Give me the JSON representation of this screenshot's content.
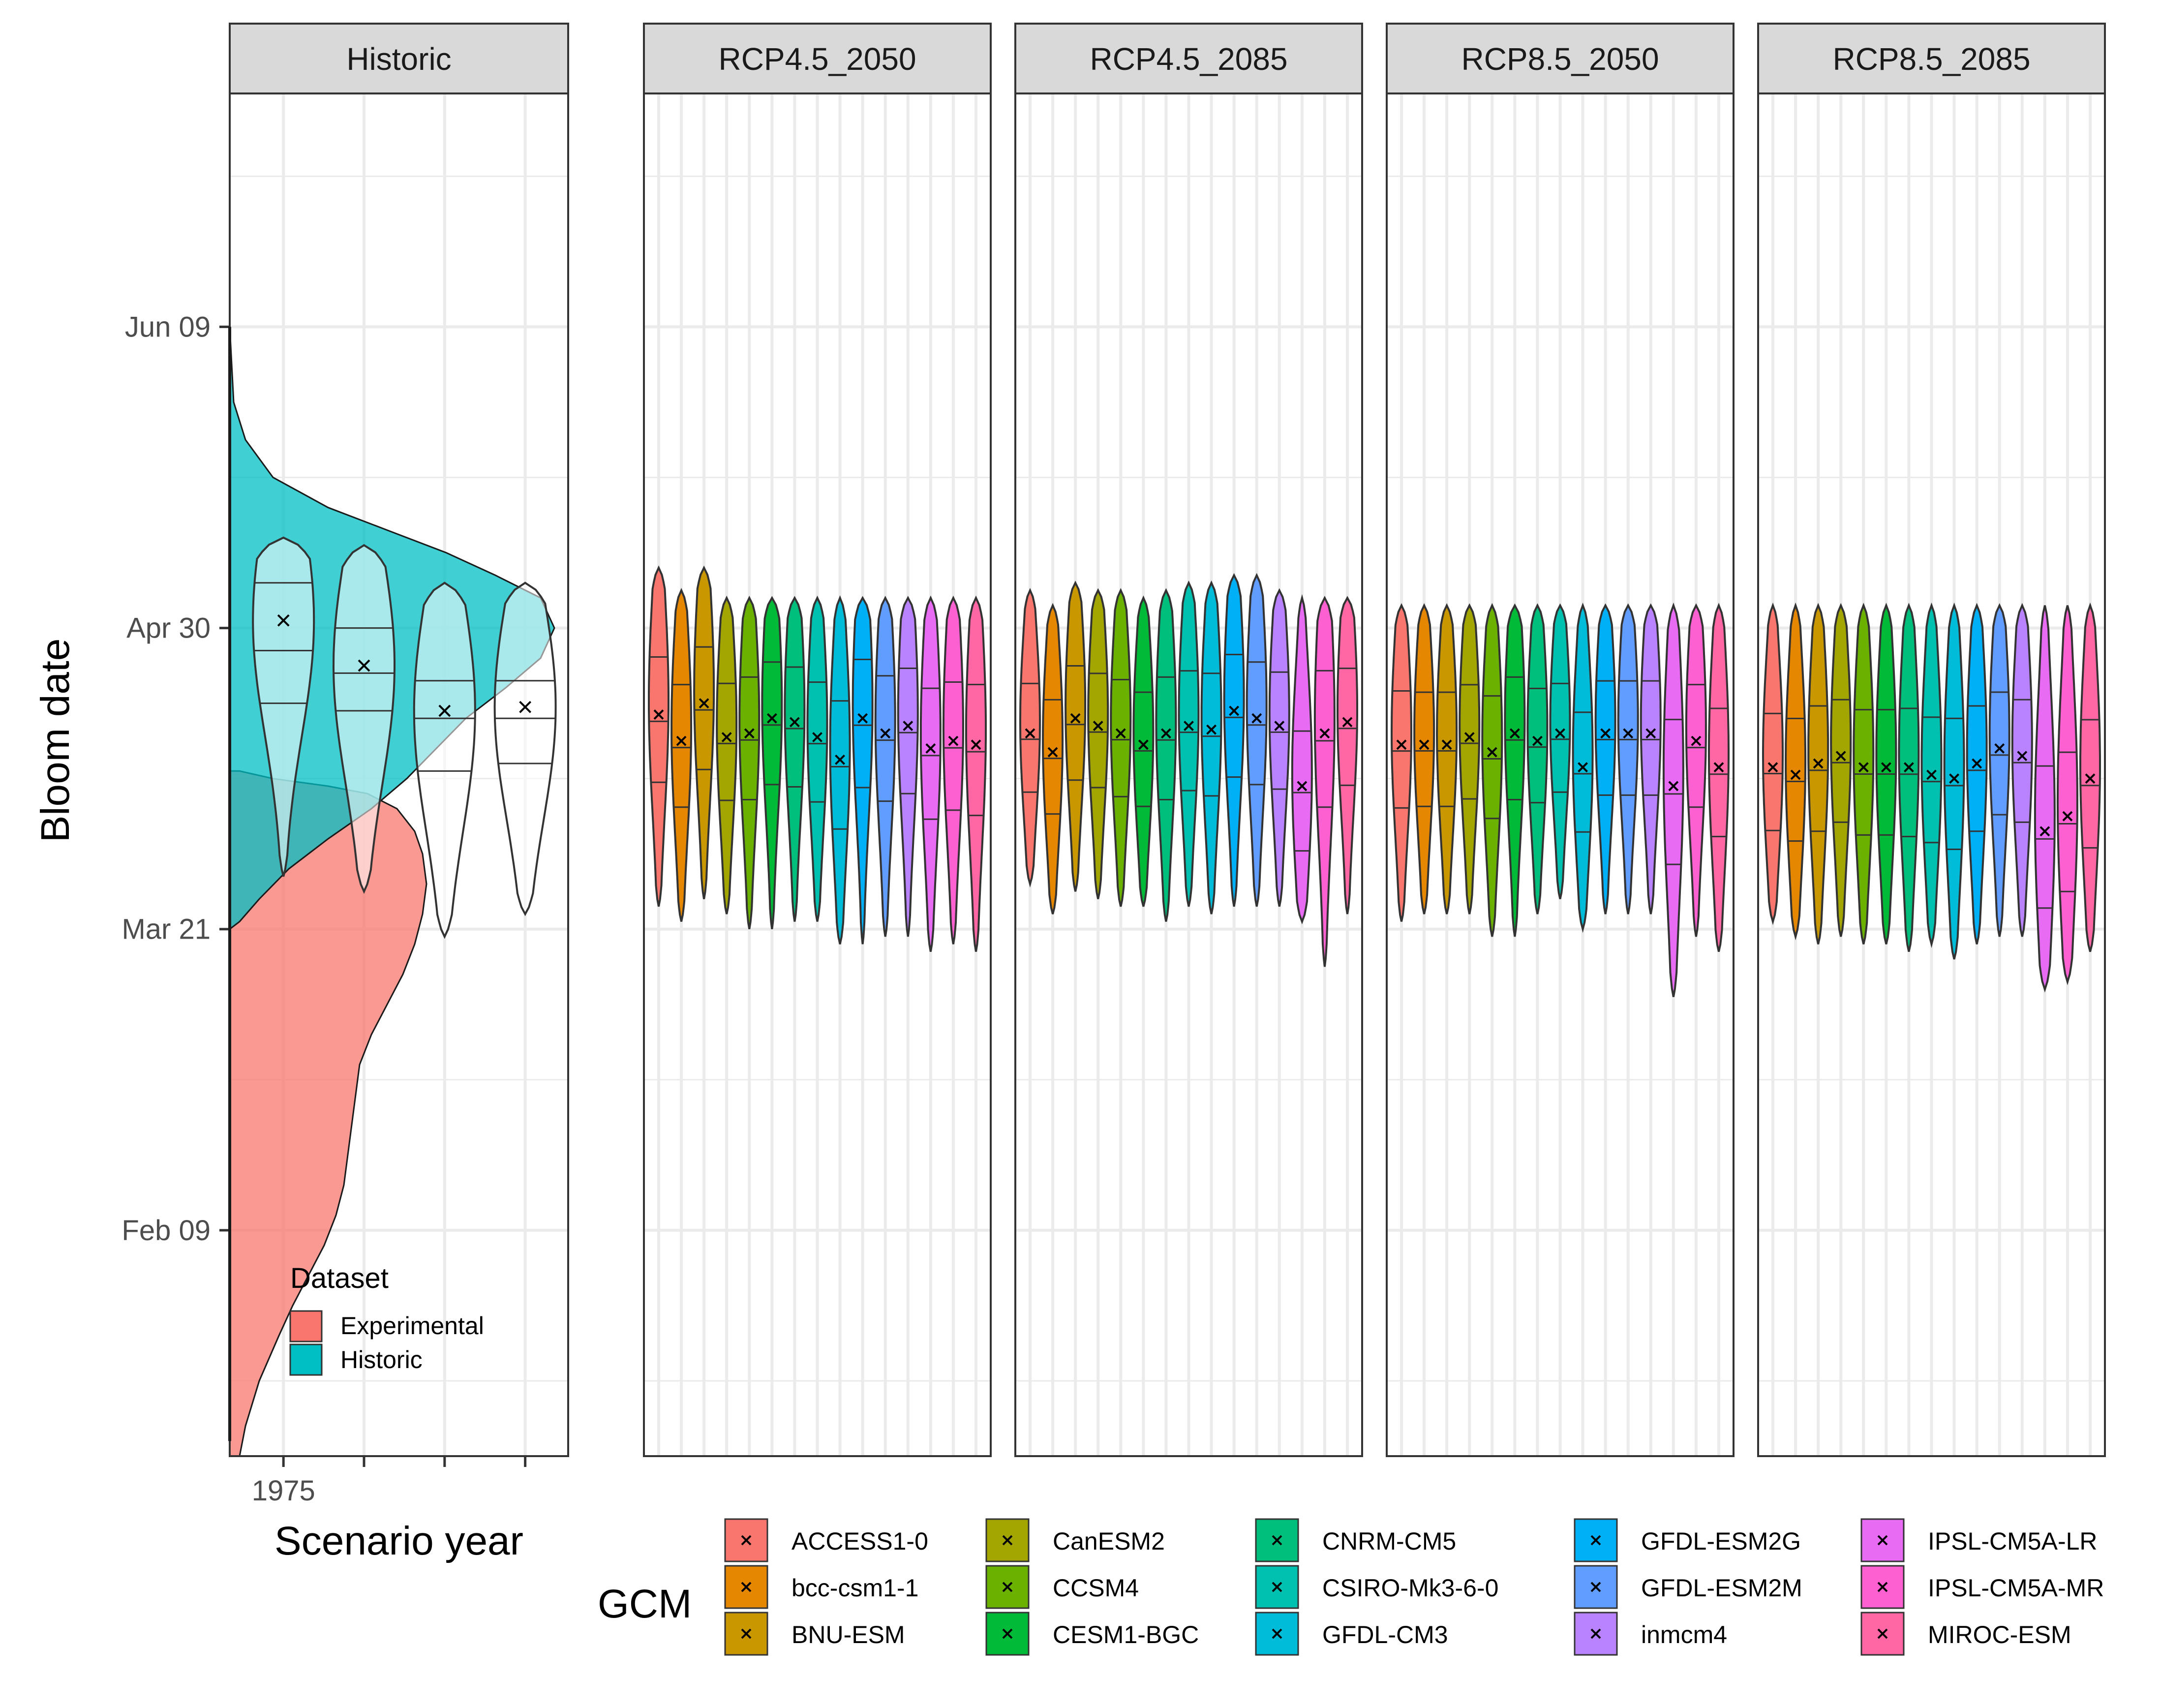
{
  "chart_data": {
    "type": "violin",
    "xlabel": "Scenario year",
    "ylabel": "Bloom date",
    "y_unit": "day of year",
    "ylim_doy": [
      10,
      191
    ],
    "y_ticks": [
      {
        "label": "Feb 09",
        "doy": 40
      },
      {
        "label": "Mar 21",
        "doy": 80
      },
      {
        "label": "Apr 30",
        "doy": 120
      },
      {
        "label": "Jun 09",
        "doy": 160
      }
    ],
    "grid": true,
    "historic_panel": {
      "title": "Historic",
      "x_ticks": [
        {
          "label": "1975",
          "value": 1975
        },
        {
          "label": "",
          "value": 1990
        },
        {
          "label": "",
          "value": 2005
        },
        {
          "label": "",
          "value": 2020
        }
      ],
      "xlim": [
        1965,
        2028
      ],
      "dataset_legend": {
        "title": "Dataset",
        "placement": "inside-bottom-left",
        "entries": [
          {
            "label": "Experimental",
            "color": "#F8766D"
          },
          {
            "label": "Historic",
            "color": "#00BFC4"
          }
        ]
      },
      "density_experimental": [
        [
          10,
          0.05
        ],
        [
          14,
          0.08
        ],
        [
          20,
          0.15
        ],
        [
          26,
          0.25
        ],
        [
          30,
          0.32
        ],
        [
          34,
          0.4
        ],
        [
          38,
          0.48
        ],
        [
          42,
          0.54
        ],
        [
          46,
          0.58
        ],
        [
          50,
          0.6
        ],
        [
          54,
          0.62
        ],
        [
          58,
          0.64
        ],
        [
          62,
          0.66
        ],
        [
          66,
          0.72
        ],
        [
          70,
          0.8
        ],
        [
          74,
          0.88
        ],
        [
          78,
          0.94
        ],
        [
          82,
          0.98
        ],
        [
          86,
          1.0
        ],
        [
          90,
          0.98
        ],
        [
          93,
          0.94
        ],
        [
          96,
          0.85
        ],
        [
          98,
          0.7
        ],
        [
          99,
          0.5
        ],
        [
          100,
          0.22
        ],
        [
          101,
          0.05
        ]
      ],
      "density_historic": [
        [
          80,
          0.0
        ],
        [
          81,
          0.05
        ],
        [
          84,
          0.15
        ],
        [
          88,
          0.3
        ],
        [
          92,
          0.5
        ],
        [
          96,
          0.72
        ],
        [
          100,
          0.9
        ],
        [
          104,
          1.05
        ],
        [
          108,
          1.2
        ],
        [
          112,
          1.4
        ],
        [
          116,
          1.58
        ],
        [
          120,
          1.65
        ],
        [
          124,
          1.58
        ],
        [
          127,
          1.35
        ],
        [
          130,
          1.1
        ],
        [
          133,
          0.8
        ],
        [
          136,
          0.5
        ],
        [
          140,
          0.22
        ],
        [
          145,
          0.08
        ],
        [
          150,
          0.02
        ],
        [
          160,
          0.0
        ]
      ],
      "violins": [
        {
          "year": 1975,
          "mean": 121.0,
          "min": 87,
          "max": 132,
          "q1": 110,
          "q2": 117,
          "q3": 126
        },
        {
          "year": 1990,
          "mean": 115.0,
          "min": 85,
          "max": 131,
          "q1": 109,
          "q2": 114,
          "q3": 120
        },
        {
          "year": 2005,
          "mean": 109.0,
          "min": 79,
          "max": 126,
          "q1": 101,
          "q2": 108,
          "q3": 113
        },
        {
          "year": 2020,
          "mean": 109.5,
          "min": 82,
          "max": 126,
          "q1": 102,
          "q2": 108,
          "q3": 113
        }
      ]
    },
    "gcm_legend": {
      "title": "GCM",
      "entries": [
        {
          "name": "ACCESS1-0",
          "color": "#F8766D"
        },
        {
          "name": "bcc-csm1-1",
          "color": "#E58700"
        },
        {
          "name": "BNU-ESM",
          "color": "#C99800"
        },
        {
          "name": "CanESM2",
          "color": "#A3A500"
        },
        {
          "name": "CCSM4",
          "color": "#6BB100"
        },
        {
          "name": "CESM1-BGC",
          "color": "#00BA38"
        },
        {
          "name": "CNRM-CM5",
          "color": "#00BF7D"
        },
        {
          "name": "CSIRO-Mk3-6-0",
          "color": "#00C0AF"
        },
        {
          "name": "GFDL-CM3",
          "color": "#00BCD8"
        },
        {
          "name": "GFDL-ESM2G",
          "color": "#00B0F6"
        },
        {
          "name": "GFDL-ESM2M",
          "color": "#619CFF"
        },
        {
          "name": "inmcm4",
          "color": "#B983FF"
        },
        {
          "name": "IPSL-CM5A-LR",
          "color": "#E76BF3"
        },
        {
          "name": "IPSL-CM5A-MR",
          "color": "#FD61D1"
        },
        {
          "name": "MIROC-ESM",
          "color": "#FF67A4"
        }
      ]
    },
    "scenario_panels": [
      {
        "title": "RCP4.5_2050",
        "mean": [
          108.5,
          105,
          110,
          105.5,
          106,
          108,
          107.5,
          105.5,
          102.5,
          108,
          106,
          107,
          104,
          105,
          104.5
        ],
        "min": [
          83,
          81,
          84,
          82,
          80,
          80,
          81,
          81,
          78,
          78,
          79,
          79,
          77,
          78,
          77
        ],
        "max": [
          128,
          125,
          128,
          124,
          124,
          124,
          124,
          124,
          124,
          124,
          124,
          124,
          124,
          124,
          124
        ]
      },
      {
        "title": "RCP4.5_2085",
        "mean": [
          106,
          103.5,
          108,
          107,
          106,
          104.5,
          106,
          107,
          106.5,
          109,
          108,
          107,
          99,
          106,
          107.5
        ],
        "min": [
          86,
          82,
          85,
          84,
          83,
          83,
          81,
          83,
          82,
          83,
          83,
          83,
          81,
          75,
          82
        ],
        "max": [
          125,
          123,
          126,
          125,
          125,
          124,
          125,
          126,
          126,
          127,
          127,
          125,
          124,
          124,
          124
        ]
      },
      {
        "title": "RCP8.5_2050",
        "mean": [
          104.5,
          104.5,
          104.5,
          105.5,
          103.5,
          106,
          105,
          106,
          101.5,
          106,
          106,
          106,
          99,
          105,
          101.5
        ],
        "min": [
          81,
          82,
          82,
          82,
          79,
          79,
          82,
          84,
          80,
          82,
          82,
          82,
          71,
          79,
          77
        ],
        "max": [
          123,
          123,
          123,
          123,
          123,
          123,
          123,
          123,
          123,
          123,
          123,
          123,
          123,
          123,
          123
        ]
      },
      {
        "title": "RCP8.5_2085",
        "mean": [
          101.5,
          100.5,
          102,
          103,
          101.5,
          101.5,
          101.5,
          100.5,
          100,
          102,
          104,
          103,
          93,
          95,
          100
        ],
        "min": [
          81,
          79,
          78,
          79,
          78,
          78,
          77,
          78,
          76,
          78,
          79,
          79,
          72,
          73,
          77
        ],
        "max": [
          123,
          123,
          123,
          123,
          123,
          123,
          123,
          123,
          123,
          123,
          123,
          123,
          123,
          123,
          123
        ]
      }
    ]
  }
}
